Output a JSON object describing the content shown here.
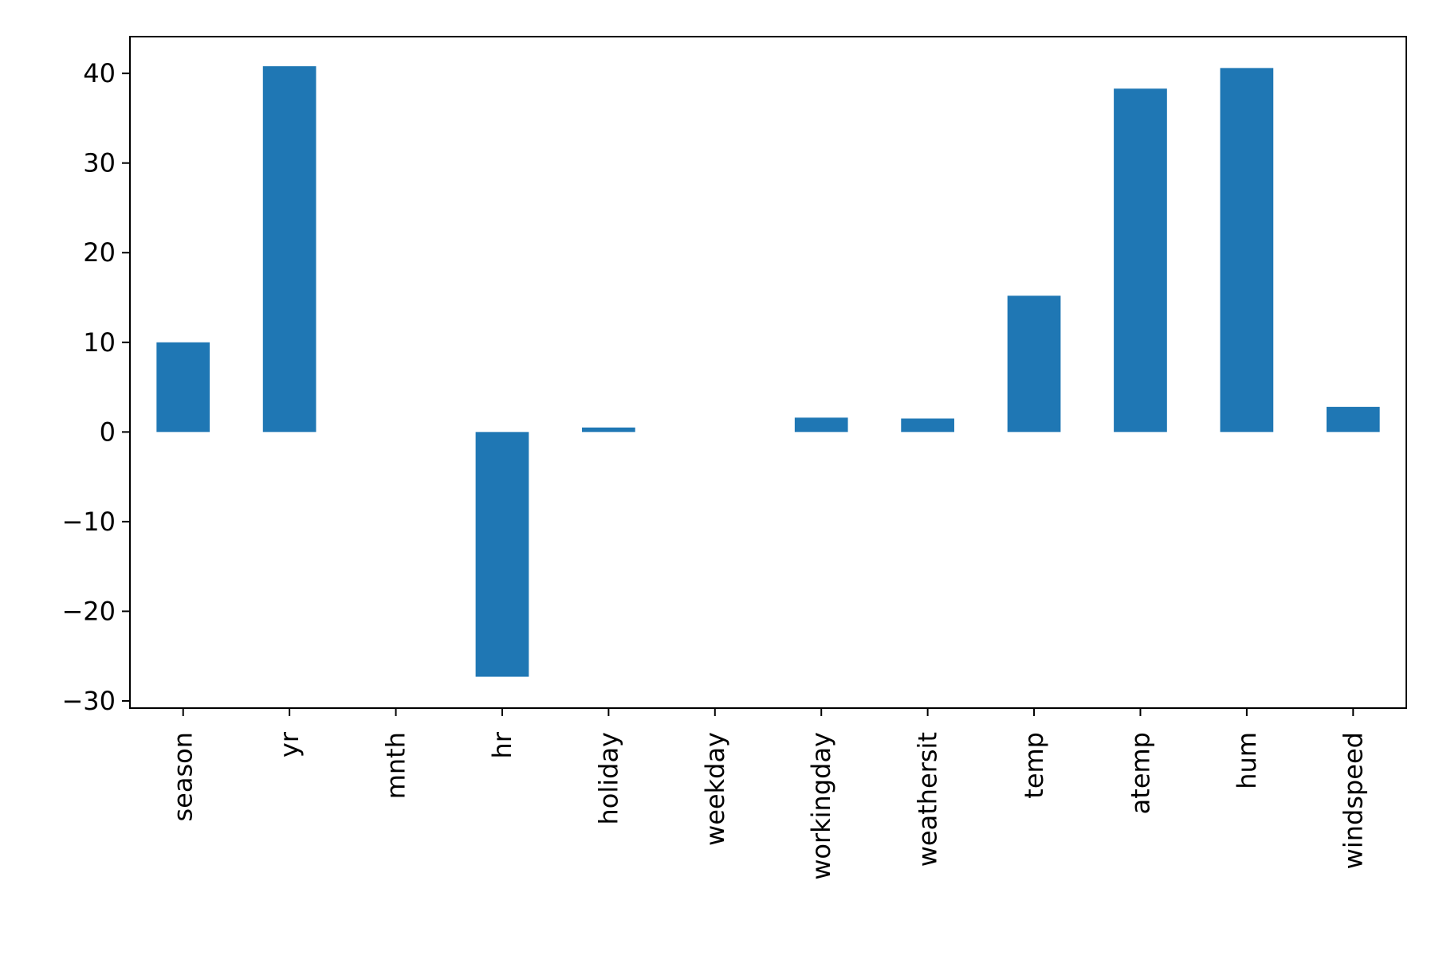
{
  "chart_data": {
    "type": "bar",
    "categories": [
      "season",
      "yr",
      "mnth",
      "hr",
      "holiday",
      "weekday",
      "workingday",
      "weathersit",
      "temp",
      "atemp",
      "hum",
      "windspeed"
    ],
    "values": [
      10.0,
      40.8,
      0.0,
      -27.3,
      0.5,
      0.0,
      1.6,
      1.5,
      15.2,
      38.3,
      40.6,
      2.8
    ],
    "title": "",
    "xlabel": "",
    "ylabel": "",
    "ylim": [
      -30.8,
      44.1
    ],
    "yticks": [
      -30,
      -20,
      -10,
      0,
      10,
      20,
      30,
      40
    ],
    "ytick_labels": [
      "−30",
      "−20",
      "−10",
      "0",
      "10",
      "20",
      "30",
      "40"
    ],
    "bar_color": "#1f77b4",
    "grid": false,
    "legend": "none"
  }
}
